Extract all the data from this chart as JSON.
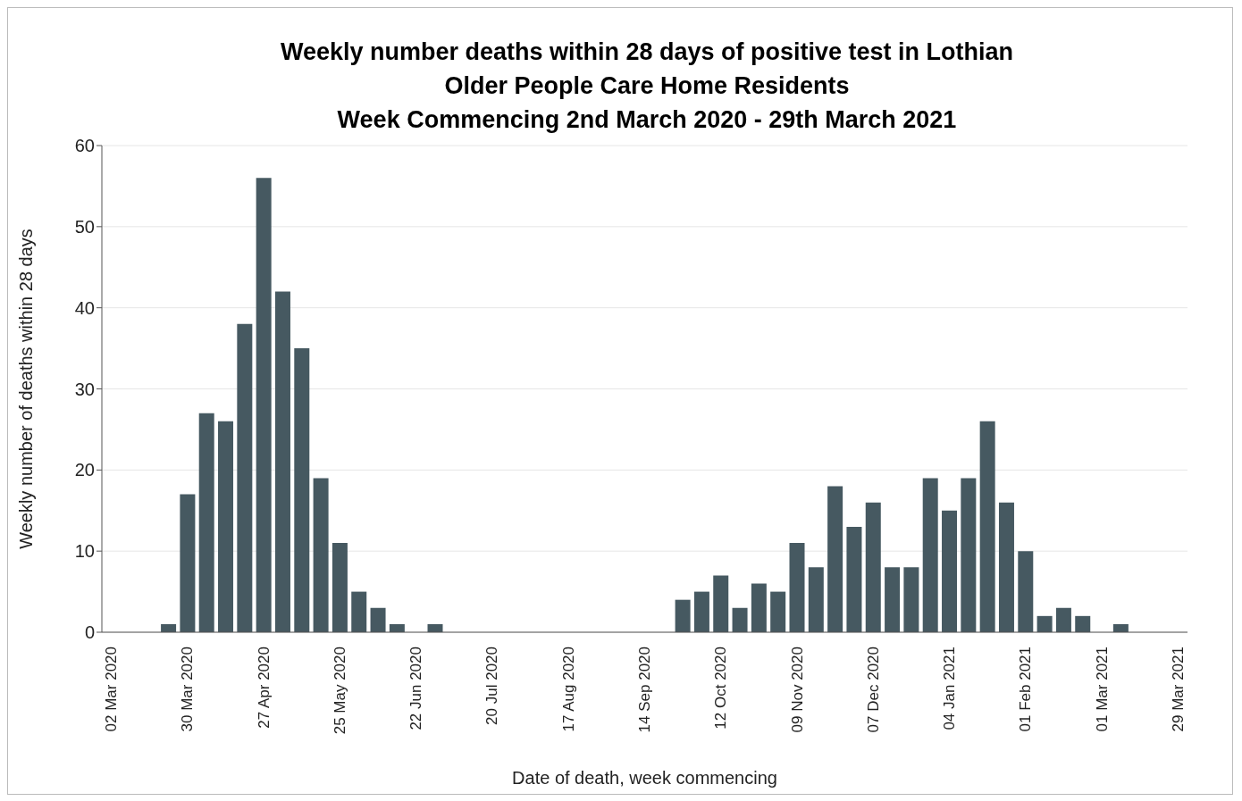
{
  "chart_data": {
    "type": "bar",
    "title": "Weekly number deaths within 28 days of positive test in Lothian\nOlder People Care Home Residents\nWeek Commencing 2nd March 2020 - 29th March 2021",
    "xlabel": "Date of death, week commencing",
    "ylabel": "Weekly number  of deaths within 28 days",
    "categories": [
      "02 Mar 2020",
      null,
      null,
      null,
      "30 Mar 2020",
      null,
      null,
      null,
      "27 Apr 2020",
      null,
      null,
      null,
      "25 May 2020",
      null,
      null,
      null,
      "22 Jun 2020",
      null,
      null,
      null,
      "20 Jul 2020",
      null,
      null,
      null,
      "17 Aug 2020",
      null,
      null,
      null,
      "14 Sep 2020",
      null,
      null,
      null,
      "12 Oct 2020",
      null,
      null,
      null,
      "09 Nov 2020",
      null,
      null,
      null,
      "07 Dec 2020",
      null,
      null,
      null,
      "04 Jan 2021",
      null,
      null,
      null,
      "01 Feb 2021",
      null,
      null,
      null,
      "01 Mar 2021",
      null,
      null,
      null,
      "29 Mar 2021"
    ],
    "values": [
      0,
      0,
      0,
      1,
      17,
      27,
      26,
      38,
      56,
      42,
      35,
      19,
      11,
      5,
      3,
      1,
      0,
      1,
      0,
      0,
      0,
      0,
      0,
      0,
      0,
      0,
      0,
      0,
      0,
      0,
      4,
      5,
      7,
      3,
      6,
      5,
      11,
      8,
      18,
      13,
      16,
      8,
      8,
      19,
      15,
      19,
      26,
      16,
      10,
      2,
      3,
      2,
      0,
      1,
      0,
      0,
      0
    ],
    "color": "#465961",
    "ylim": [
      0,
      60
    ],
    "yticks": [
      0,
      10,
      20,
      30,
      40,
      50,
      60
    ],
    "grid": "y",
    "legend": false
  }
}
